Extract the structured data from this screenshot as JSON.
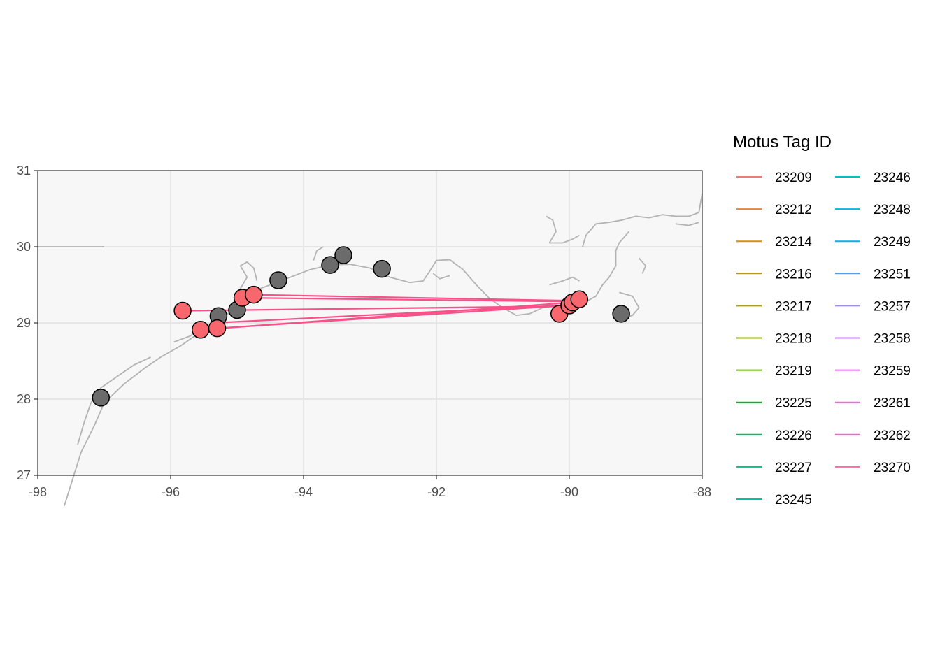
{
  "chart_data": {
    "type": "map",
    "xlim": [
      -98,
      -88
    ],
    "ylim": [
      27,
      31
    ],
    "x_ticks": [
      "-98",
      "-96",
      "-94",
      "-92",
      "-90",
      "-88"
    ],
    "y_ticks": [
      "27",
      "28",
      "29",
      "30",
      "31"
    ],
    "xlabel": "",
    "ylabel": "",
    "grid": true,
    "colors": {
      "panel": "#f7f7f7",
      "grid": "#e6e6e6",
      "coast": "#b3b3b3",
      "axis": "#333333",
      "station_fill": "#6b6b6b",
      "detection_fill": "#f8676d",
      "track": "#f9508a",
      "track_alt": "#9b72f5"
    },
    "coastline": [
      [
        [
          -98.0,
          30.0
        ],
        [
          -97.0,
          30.0
        ]
      ],
      [
        [
          -97.6,
          26.6
        ],
        [
          -97.35,
          27.3
        ],
        [
          -97.15,
          27.65
        ],
        [
          -97.0,
          27.95
        ],
        [
          -96.7,
          28.2
        ],
        [
          -96.4,
          28.4
        ],
        [
          -96.15,
          28.55
        ],
        [
          -95.85,
          28.7
        ],
        [
          -95.6,
          28.85
        ],
        [
          -95.3,
          29.0
        ],
        [
          -95.1,
          29.15
        ],
        [
          -94.9,
          29.3
        ],
        [
          -94.75,
          29.42
        ],
        [
          -94.5,
          29.5
        ],
        [
          -94.2,
          29.6
        ],
        [
          -93.9,
          29.7
        ],
        [
          -93.6,
          29.76
        ],
        [
          -93.3,
          29.77
        ],
        [
          -93.0,
          29.72
        ],
        [
          -92.7,
          29.6
        ],
        [
          -92.4,
          29.53
        ],
        [
          -92.2,
          29.55
        ],
        [
          -92.1,
          29.68
        ],
        [
          -92.0,
          29.82
        ],
        [
          -91.8,
          29.83
        ],
        [
          -91.6,
          29.7
        ],
        [
          -91.4,
          29.5
        ],
        [
          -91.2,
          29.32
        ],
        [
          -91.0,
          29.2
        ],
        [
          -90.8,
          29.1
        ],
        [
          -90.6,
          29.12
        ],
        [
          -90.4,
          29.2
        ],
        [
          -90.2,
          29.22
        ],
        [
          -90.05,
          29.2
        ],
        [
          -89.95,
          29.25
        ],
        [
          -89.85,
          29.3
        ],
        [
          -89.75,
          29.28
        ],
        [
          -89.6,
          29.35
        ],
        [
          -89.5,
          29.5
        ],
        [
          -89.4,
          29.6
        ],
        [
          -89.3,
          29.75
        ],
        [
          -89.3,
          29.95
        ],
        [
          -89.25,
          30.05
        ],
        [
          -89.1,
          30.2
        ]
      ],
      [
        [
          -89.25,
          29.4
        ],
        [
          -89.05,
          29.35
        ],
        [
          -88.95,
          29.2
        ],
        [
          -89.05,
          29.1
        ],
        [
          -89.2,
          29.05
        ]
      ],
      [
        [
          -90.3,
          29.5
        ],
        [
          -90.1,
          29.55
        ],
        [
          -89.95,
          29.6
        ],
        [
          -89.85,
          29.55
        ]
      ],
      [
        [
          -88.95,
          29.85
        ],
        [
          -88.85,
          29.75
        ],
        [
          -88.9,
          29.65
        ]
      ],
      [
        [
          -89.8,
          30.0
        ],
        [
          -89.75,
          30.15
        ],
        [
          -89.6,
          30.3
        ],
        [
          -89.4,
          30.32
        ],
        [
          -89.2,
          30.35
        ],
        [
          -89.0,
          30.4
        ],
        [
          -88.8,
          30.38
        ],
        [
          -88.6,
          30.42
        ],
        [
          -88.4,
          30.4
        ],
        [
          -88.2,
          30.4
        ],
        [
          -88.05,
          30.45
        ],
        [
          -88.0,
          30.7
        ]
      ],
      [
        [
          -90.35,
          30.4
        ],
        [
          -90.25,
          30.35
        ],
        [
          -90.2,
          30.2
        ],
        [
          -90.3,
          30.05
        ],
        [
          -90.1,
          30.05
        ],
        [
          -89.95,
          30.1
        ],
        [
          -89.85,
          30.15
        ]
      ],
      [
        [
          -88.4,
          30.3
        ],
        [
          -88.2,
          30.28
        ],
        [
          -88.05,
          30.32
        ]
      ],
      [
        [
          -97.4,
          27.4
        ],
        [
          -97.3,
          27.7
        ],
        [
          -97.2,
          27.95
        ],
        [
          -97.05,
          28.15
        ],
        [
          -96.8,
          28.3
        ],
        [
          -96.55,
          28.45
        ],
        [
          -96.3,
          28.55
        ]
      ],
      [
        [
          -95.95,
          28.75
        ],
        [
          -95.7,
          28.83
        ],
        [
          -95.5,
          29.0
        ]
      ],
      [
        [
          -94.95,
          29.45
        ],
        [
          -94.85,
          29.6
        ],
        [
          -94.95,
          29.75
        ],
        [
          -94.85,
          29.8
        ],
        [
          -94.75,
          29.72
        ],
        [
          -94.7,
          29.55
        ]
      ],
      [
        [
          -93.85,
          29.82
        ],
        [
          -93.8,
          29.95
        ],
        [
          -93.7,
          30.0
        ]
      ],
      [
        [
          -91.8,
          29.62
        ],
        [
          -91.95,
          29.58
        ],
        [
          -92.05,
          29.65
        ]
      ]
    ],
    "stations": [
      {
        "lon": -97.05,
        "lat": 28.02
      },
      {
        "lon": -95.28,
        "lat": 29.09
      },
      {
        "lon": -95.0,
        "lat": 29.17
      },
      {
        "lon": -94.38,
        "lat": 29.56
      },
      {
        "lon": -93.6,
        "lat": 29.76
      },
      {
        "lon": -93.4,
        "lat": 29.89
      },
      {
        "lon": -92.82,
        "lat": 29.71
      },
      {
        "lon": -89.22,
        "lat": 29.12
      }
    ],
    "detections": [
      {
        "lon": -95.82,
        "lat": 29.16
      },
      {
        "lon": -95.55,
        "lat": 28.91
      },
      {
        "lon": -95.3,
        "lat": 28.93
      },
      {
        "lon": -94.92,
        "lat": 29.33
      },
      {
        "lon": -94.75,
        "lat": 29.37
      },
      {
        "lon": -90.15,
        "lat": 29.12
      },
      {
        "lon": -90.0,
        "lat": 29.23
      },
      {
        "lon": -89.95,
        "lat": 29.27
      },
      {
        "lon": -89.85,
        "lat": 29.31
      }
    ],
    "tracks": [
      {
        "tag": "23270",
        "from": [
          -95.82,
          29.16
        ],
        "to": [
          -90.0,
          29.22
        ]
      },
      {
        "tag": "23262",
        "from": [
          -95.55,
          28.91
        ],
        "to": [
          -89.95,
          29.27
        ]
      },
      {
        "tag": "23270",
        "from": [
          -95.3,
          28.93
        ],
        "to": [
          -90.05,
          29.23
        ]
      },
      {
        "tag": "23262",
        "from": [
          -95.35,
          29.0
        ],
        "to": [
          -89.9,
          29.24
        ]
      },
      {
        "tag": "23270",
        "from": [
          -94.92,
          29.33
        ],
        "to": [
          -89.9,
          29.28
        ]
      },
      {
        "tag": "23262",
        "from": [
          -94.75,
          29.37
        ],
        "to": [
          -89.88,
          29.29
        ]
      },
      {
        "tag": "23257",
        "from": [
          -90.15,
          29.12
        ],
        "to": [
          -89.88,
          29.3
        ]
      }
    ],
    "legend": {
      "title": "Motus Tag ID",
      "position": "right",
      "items": [
        {
          "label": "23209",
          "color": "#F8766D"
        },
        {
          "label": "23212",
          "color": "#EC8239"
        },
        {
          "label": "23214",
          "color": "#DB8E00"
        },
        {
          "label": "23216",
          "color": "#C79800"
        },
        {
          "label": "23217",
          "color": "#AEA200"
        },
        {
          "label": "23218",
          "color": "#8FAA00"
        },
        {
          "label": "23219",
          "color": "#64B200"
        },
        {
          "label": "23225",
          "color": "#00B81B"
        },
        {
          "label": "23226",
          "color": "#00BD5C"
        },
        {
          "label": "23227",
          "color": "#00C085"
        },
        {
          "label": "23245",
          "color": "#00C1A7"
        },
        {
          "label": "23246",
          "color": "#00BFC4"
        },
        {
          "label": "23248",
          "color": "#00BADE"
        },
        {
          "label": "23249",
          "color": "#00B0F6"
        },
        {
          "label": "23251",
          "color": "#45A2FF"
        },
        {
          "label": "23257",
          "color": "#9B8EFF"
        },
        {
          "label": "23258",
          "color": "#C77CFF"
        },
        {
          "label": "23259",
          "color": "#E66BF3"
        },
        {
          "label": "23261",
          "color": "#F863DF"
        },
        {
          "label": "23262",
          "color": "#FF61C3"
        },
        {
          "label": "23270",
          "color": "#FF66A8"
        }
      ]
    }
  }
}
